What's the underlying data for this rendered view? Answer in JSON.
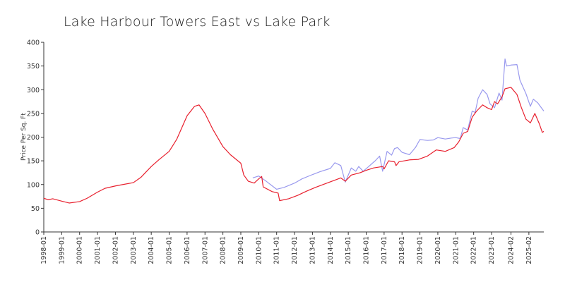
{
  "chart_data": {
    "type": "line",
    "title": "Lake Harbour Towers East vs Lake Park",
    "xlabel": "",
    "ylabel": "Price Per Sq. Ft",
    "ylim": [
      0,
      400
    ],
    "yticks": [
      0,
      50,
      100,
      150,
      200,
      250,
      300,
      350,
      400
    ],
    "xlim": [
      "1998-01",
      "2025-12"
    ],
    "xticks": [
      "1998-01",
      "1999-01",
      "2000-01",
      "2001-01",
      "2002-01",
      "2003-01",
      "2004-01",
      "2005-01",
      "2006-01",
      "2007-01",
      "2008-01",
      "2009-01",
      "2010-01",
      "2011-01",
      "2012-01",
      "2013-01",
      "2014-01",
      "2015-01",
      "2016-01",
      "2017-01",
      "2018-01",
      "2019-01",
      "2020-01",
      "2021-01",
      "2022-01",
      "2023-01",
      "2024-02",
      "2025-02"
    ],
    "grid": false,
    "legend": "none",
    "series": [
      {
        "color": "#9999ee",
        "points": [
          [
            "2009-09",
            114
          ],
          [
            "2010-01",
            118
          ],
          [
            "2010-06",
            107
          ],
          [
            "2011-01",
            90
          ],
          [
            "2011-06",
            94
          ],
          [
            "2012-01",
            103
          ],
          [
            "2012-06",
            112
          ],
          [
            "2013-01",
            121
          ],
          [
            "2013-06",
            127
          ],
          [
            "2014-01",
            134
          ],
          [
            "2014-04",
            146
          ],
          [
            "2014-08",
            140
          ],
          [
            "2014-11",
            105
          ],
          [
            "2015-03",
            135
          ],
          [
            "2015-06",
            128
          ],
          [
            "2015-08",
            138
          ],
          [
            "2015-11",
            128
          ],
          [
            "2016-03",
            139
          ],
          [
            "2016-07",
            150
          ],
          [
            "2016-10",
            160
          ],
          [
            "2016-12",
            128
          ],
          [
            "2017-03",
            170
          ],
          [
            "2017-06",
            162
          ],
          [
            "2017-08",
            176
          ],
          [
            "2017-10",
            178
          ],
          [
            "2018-01",
            168
          ],
          [
            "2018-06",
            163
          ],
          [
            "2018-10",
            178
          ],
          [
            "2019-01",
            195
          ],
          [
            "2019-06",
            193
          ],
          [
            "2019-10",
            194
          ],
          [
            "2020-01",
            199
          ],
          [
            "2020-06",
            196
          ],
          [
            "2020-10",
            198
          ],
          [
            "2021-01",
            199
          ],
          [
            "2021-04",
            197
          ],
          [
            "2021-06",
            220
          ],
          [
            "2021-09",
            215
          ],
          [
            "2021-12",
            255
          ],
          [
            "2022-02",
            252
          ],
          [
            "2022-04",
            282
          ],
          [
            "2022-07",
            300
          ],
          [
            "2022-10",
            290
          ],
          [
            "2022-12",
            270
          ],
          [
            "2023-03",
            262
          ],
          [
            "2023-06",
            293
          ],
          [
            "2023-08",
            278
          ],
          [
            "2023-10",
            365
          ],
          [
            "2023-11",
            350
          ],
          [
            "2024-02",
            352
          ],
          [
            "2024-06",
            353
          ],
          [
            "2024-08",
            320
          ],
          [
            "2024-12",
            292
          ],
          [
            "2025-03",
            265
          ],
          [
            "2025-05",
            280
          ],
          [
            "2025-08",
            272
          ],
          [
            "2025-12",
            255
          ]
        ]
      },
      {
        "color": "#e8202e",
        "points": [
          [
            "1998-01",
            71
          ],
          [
            "1998-04",
            68
          ],
          [
            "1998-07",
            70
          ],
          [
            "1999-01",
            65
          ],
          [
            "1999-06",
            61
          ],
          [
            "2000-01",
            64
          ],
          [
            "2000-06",
            71
          ],
          [
            "2001-01",
            84
          ],
          [
            "2001-06",
            92
          ],
          [
            "2002-01",
            97
          ],
          [
            "2002-06",
            100
          ],
          [
            "2003-01",
            104
          ],
          [
            "2003-06",
            115
          ],
          [
            "2004-01",
            138
          ],
          [
            "2004-06",
            152
          ],
          [
            "2005-01",
            170
          ],
          [
            "2005-06",
            195
          ],
          [
            "2006-01",
            245
          ],
          [
            "2006-06",
            265
          ],
          [
            "2006-09",
            268
          ],
          [
            "2007-01",
            250
          ],
          [
            "2007-06",
            218
          ],
          [
            "2008-01",
            180
          ],
          [
            "2008-06",
            163
          ],
          [
            "2009-01",
            145
          ],
          [
            "2009-03",
            120
          ],
          [
            "2009-06",
            107
          ],
          [
            "2009-10",
            103
          ],
          [
            "2010-01",
            112
          ],
          [
            "2010-03",
            117
          ],
          [
            "2010-04",
            95
          ],
          [
            "2010-10",
            85
          ],
          [
            "2011-02",
            82
          ],
          [
            "2011-03",
            66
          ],
          [
            "2011-09",
            70
          ],
          [
            "2012-03",
            77
          ],
          [
            "2012-09",
            86
          ],
          [
            "2013-03",
            94
          ],
          [
            "2013-09",
            101
          ],
          [
            "2014-03",
            108
          ],
          [
            "2014-08",
            114
          ],
          [
            "2014-11",
            107
          ],
          [
            "2015-03",
            120
          ],
          [
            "2015-09",
            125
          ],
          [
            "2016-01",
            130
          ],
          [
            "2016-06",
            135
          ],
          [
            "2016-12",
            138
          ],
          [
            "2017-01",
            133
          ],
          [
            "2017-04",
            150
          ],
          [
            "2017-08",
            148
          ],
          [
            "2017-09",
            140
          ],
          [
            "2017-11",
            148
          ],
          [
            "2018-06",
            152
          ],
          [
            "2018-12",
            153
          ],
          [
            "2019-06",
            160
          ],
          [
            "2019-12",
            173
          ],
          [
            "2020-06",
            170
          ],
          [
            "2020-12",
            178
          ],
          [
            "2021-03",
            190
          ],
          [
            "2021-06",
            208
          ],
          [
            "2021-09",
            212
          ],
          [
            "2021-12",
            242
          ],
          [
            "2022-03",
            255
          ],
          [
            "2022-07",
            268
          ],
          [
            "2022-10",
            262
          ],
          [
            "2023-01",
            258
          ],
          [
            "2023-03",
            275
          ],
          [
            "2023-05",
            270
          ],
          [
            "2023-08",
            285
          ],
          [
            "2023-10",
            302
          ],
          [
            "2024-02",
            305
          ],
          [
            "2024-06",
            290
          ],
          [
            "2024-09",
            262
          ],
          [
            "2024-12",
            238
          ],
          [
            "2025-03",
            230
          ],
          [
            "2025-06",
            250
          ],
          [
            "2025-09",
            228
          ],
          [
            "2025-11",
            210
          ],
          [
            "2025-12",
            212
          ]
        ]
      }
    ]
  }
}
